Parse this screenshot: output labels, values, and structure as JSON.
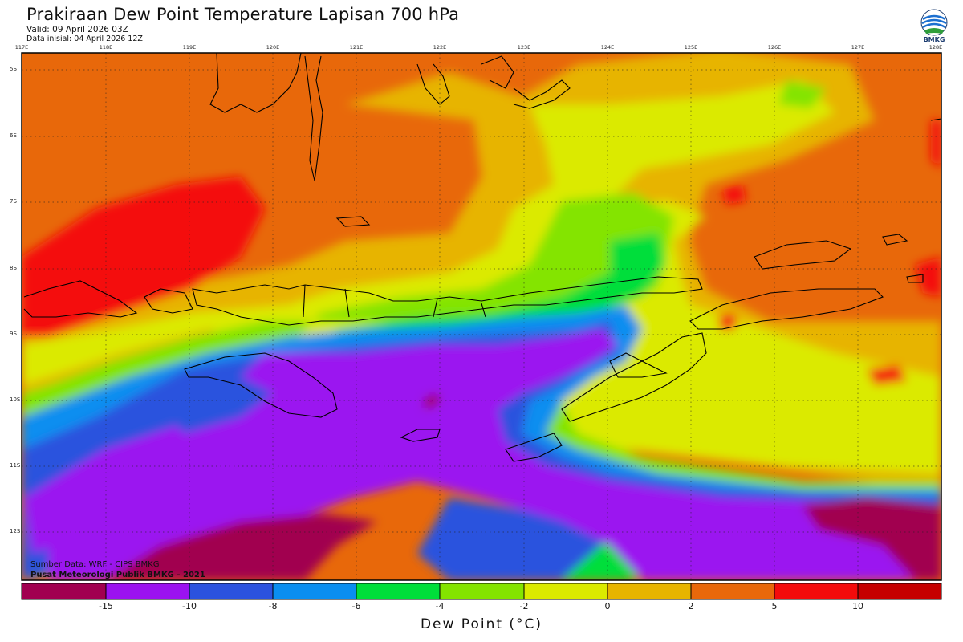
{
  "header": {
    "title": "Prakiraan Dew Point Temperature Lapisan 700 hPa",
    "valid": "Valid: 09 April 2026 03Z",
    "initial": "Data inisial: 04 April 2026 12Z"
  },
  "logo": {
    "text": "BMKG",
    "icon": "bmkg-logo-icon"
  },
  "axes": {
    "lon_labels": [
      "117E",
      "118E",
      "119E",
      "120E",
      "121E",
      "122E",
      "123E",
      "124E",
      "125E",
      "126E",
      "127E",
      "128E"
    ],
    "lat_labels": [
      "5S",
      "6S",
      "7S",
      "8S",
      "9S",
      "10S",
      "11S",
      "12S"
    ]
  },
  "credits": {
    "source": "Sumber Data: WRF - CIPS BMKG",
    "producer": "Pusat Meteorologi Publik BMKG - 2021"
  },
  "colorbar": {
    "labels": [
      "-15",
      "-10",
      "-8",
      "-6",
      "-4",
      "-2",
      "0",
      "2",
      "5",
      "10"
    ],
    "colors": [
      "#a10050",
      "#9b12f0",
      "#2b52de",
      "#0a8ef0",
      "#00de3a",
      "#84e400",
      "#dbea00",
      "#e7b400",
      "#e8680a",
      "#f40b0b",
      "#c50000"
    ],
    "xlabel": "Dew Point (°C)"
  }
}
